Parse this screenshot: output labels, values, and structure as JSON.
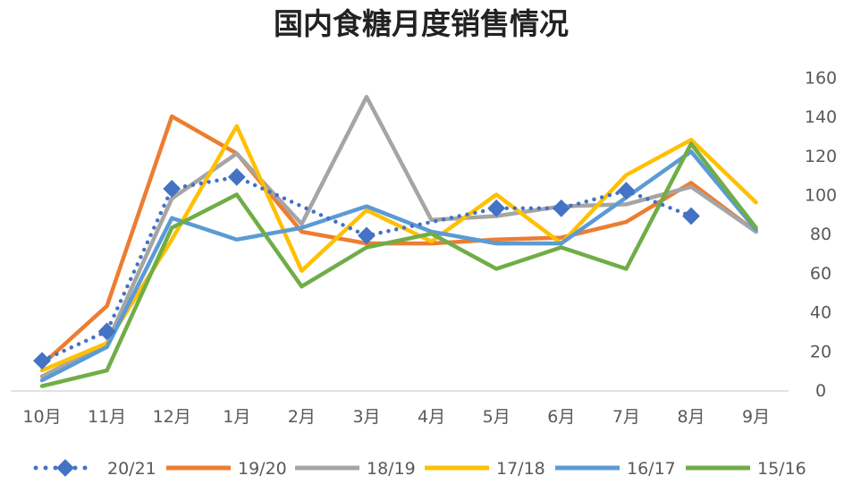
{
  "chart_data": {
    "type": "line",
    "title": "国内食糖月度销售情况",
    "categories": [
      "10月",
      "11月",
      "12月",
      "1月",
      "2月",
      "3月",
      "4月",
      "5月",
      "6月",
      "7月",
      "8月",
      "9月"
    ],
    "y_axis_position": "right",
    "ylim": [
      0,
      160
    ],
    "yticks": [
      0,
      20,
      40,
      60,
      80,
      100,
      120,
      140,
      160
    ],
    "grid": false,
    "legend_position": "bottom",
    "series": [
      {
        "name": "20/21",
        "color": "#4472c4",
        "style": "dotted-diamond",
        "values": [
          15,
          30,
          103,
          109,
          null,
          79,
          null,
          93,
          93,
          102,
          89,
          null
        ]
      },
      {
        "name": "19/20",
        "color": "#ed7d31",
        "style": "solid",
        "values": [
          13,
          43,
          140,
          121,
          81,
          75,
          75,
          77,
          78,
          86,
          106,
          81
        ]
      },
      {
        "name": "18/19",
        "color": "#a5a5a5",
        "style": "solid",
        "values": [
          7,
          24,
          98,
          121,
          85,
          150,
          87,
          89,
          94,
          95,
          104,
          81
        ]
      },
      {
        "name": "17/18",
        "color": "#ffc000",
        "style": "solid",
        "values": [
          10,
          24,
          77,
          135,
          61,
          92,
          76,
          100,
          75,
          110,
          128,
          96
        ]
      },
      {
        "name": "16/17",
        "color": "#5b9bd5",
        "style": "solid",
        "values": [
          5,
          22,
          88,
          77,
          83,
          94,
          81,
          75,
          75,
          null,
          122,
          82
        ]
      },
      {
        "name": "15/16",
        "color": "#70ad47",
        "style": "solid",
        "values": [
          2,
          10,
          83,
          100,
          53,
          73,
          80,
          62,
          73,
          62,
          126,
          83
        ]
      }
    ]
  }
}
